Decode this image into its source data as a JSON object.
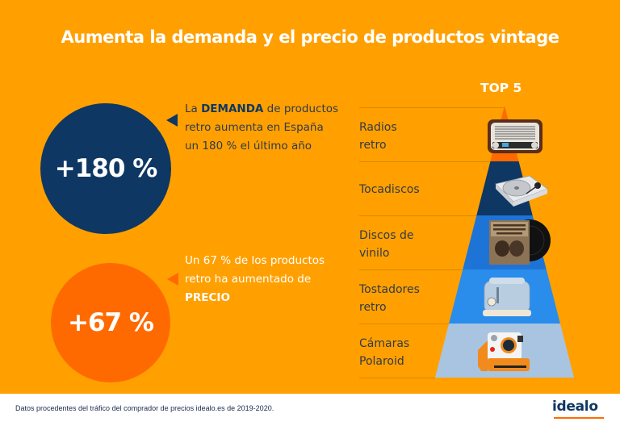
{
  "header": {
    "title": "Aumenta la demanda y el precio de productos vintage"
  },
  "stats": {
    "demand": {
      "value": "+180 %",
      "note_prefix": "La ",
      "note_bold": "DEMANDA",
      "note_rest_line1": " de productos",
      "note_line2": "retro aumenta en España",
      "note_line3": "un 180 % el último año",
      "color": "#0E3763"
    },
    "price": {
      "value": "+67 %",
      "note_line1": "Un 67 % de los productos",
      "note_line2": "retro ha aumentado de",
      "note_bold": "PRECIO",
      "color": "#FF6A00"
    }
  },
  "top5": {
    "heading": "TOP 5",
    "items": [
      {
        "rank": 1,
        "label_line1": "Radios",
        "label_line2": "retro",
        "icon": "retro-radio-icon",
        "band_color": "#FF6A00"
      },
      {
        "rank": 2,
        "label_line1": "Tocadiscos",
        "label_line2": "",
        "icon": "turntable-icon",
        "band_color": "#0E3763"
      },
      {
        "rank": 3,
        "label_line1": "Discos de",
        "label_line2": "vinilo",
        "icon": "vinyl-record-icon",
        "band_color": "#1E74D6"
      },
      {
        "rank": 4,
        "label_line1": "Tostadores",
        "label_line2": "retro",
        "icon": "toaster-icon",
        "band_color": "#2A8CEB"
      },
      {
        "rank": 5,
        "label_line1": "Cámaras",
        "label_line2": "Polaroid",
        "icon": "polaroid-camera-icon",
        "band_color": "#A9C4E0"
      }
    ]
  },
  "footer": {
    "note": "Datos procedentes del tráfico del comprador de precios idealo.es de 2019-2020.",
    "brand": "idealo"
  },
  "colors": {
    "background": "#FFA000",
    "navy": "#0E3763",
    "orange": "#FF6A00",
    "white": "#FFFFFF"
  }
}
